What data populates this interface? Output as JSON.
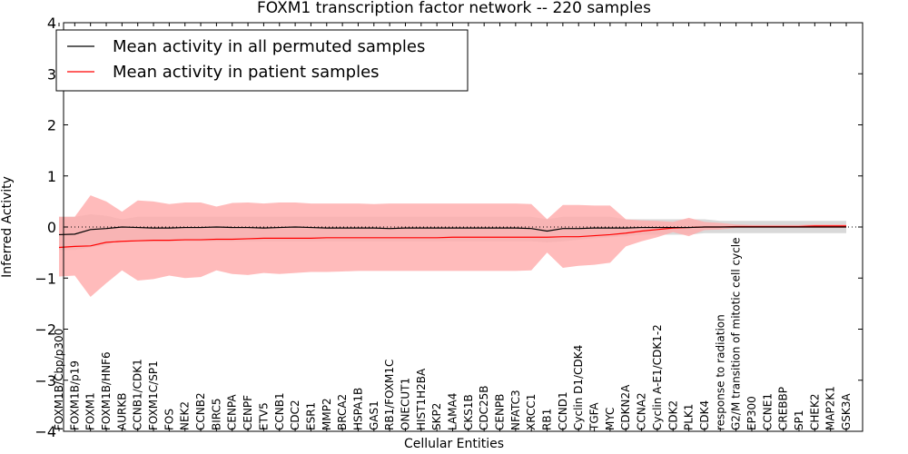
{
  "chart_data": {
    "type": "line",
    "title": "FOXM1 transcription factor network -- 220 samples",
    "xlabel": "Cellular Entities",
    "ylabel": "Inferred Activity",
    "ylim": [
      -4,
      4
    ],
    "yticks": [
      -4,
      -3,
      -2,
      -1,
      0,
      1,
      2,
      3,
      4
    ],
    "ytick_labels": [
      "−4",
      "−3",
      "−2",
      "−1",
      "0",
      "1",
      "2",
      "3",
      "4"
    ],
    "grid": false,
    "legend_position": "top-left",
    "categories": [
      "FOXM1B/Cbp/p300",
      "FOXM1B/p19",
      "FOXM1",
      "FOXM1B/HNF6",
      "AURKB",
      "CCNB1/CDK1",
      "FOXM1C/SP1",
      "FOS",
      "NEK2",
      "CCNB2",
      "BIRC5",
      "CENPA",
      "CENPF",
      "ETV5",
      "CCNB1",
      "CDC2",
      "ESR1",
      "MMP2",
      "BRCA2",
      "HSPA1B",
      "GAS1",
      "RB1/FOXM1C",
      "ONECUT1",
      "HIST1H2BA",
      "SKP2",
      "LAMA4",
      "CKS1B",
      "CDC25B",
      "CENPB",
      "NFATC3",
      "XRCC1",
      "RB1",
      "CCND1",
      "Cyclin D1/CDK4",
      "TGFA",
      "MYC",
      "CDKN2A",
      "CCNA2",
      "Cyclin A-E1/CDK1-2",
      "CDK2",
      "PLK1",
      "CDK4",
      "response to radiation",
      "G2/M transition of mitotic cell cycle",
      "EP300",
      "CCNE1",
      "CREBBP",
      "SP1",
      "CHEK2",
      "MAP2K1",
      "GSK3A"
    ],
    "series": [
      {
        "name": "Mean activity in all permuted samples",
        "color": "#000000",
        "values": [
          -0.15,
          -0.14,
          -0.05,
          -0.03,
          0.0,
          -0.01,
          -0.02,
          -0.02,
          -0.01,
          -0.01,
          0.0,
          -0.01,
          -0.01,
          -0.02,
          -0.01,
          0.0,
          -0.01,
          -0.02,
          -0.02,
          -0.02,
          -0.02,
          -0.03,
          -0.02,
          -0.02,
          -0.02,
          -0.02,
          -0.02,
          -0.02,
          -0.02,
          -0.02,
          -0.03,
          -0.08,
          -0.03,
          -0.03,
          -0.02,
          -0.02,
          -0.02,
          -0.01,
          -0.01,
          -0.01,
          -0.01,
          0.0,
          0.0,
          0.0,
          0.0,
          0.0,
          0.0,
          0.0,
          0.0,
          0.0,
          0.0
        ],
        "band_upper": [
          0.2,
          0.2,
          0.25,
          0.22,
          0.15,
          0.2,
          0.2,
          0.2,
          0.2,
          0.2,
          0.2,
          0.2,
          0.2,
          0.2,
          0.2,
          0.2,
          0.2,
          0.2,
          0.2,
          0.2,
          0.2,
          0.2,
          0.2,
          0.2,
          0.2,
          0.2,
          0.2,
          0.2,
          0.2,
          0.2,
          0.2,
          0.15,
          0.2,
          0.2,
          0.2,
          0.2,
          0.15,
          0.15,
          0.15,
          0.15,
          0.15,
          0.15,
          0.12,
          0.12,
          0.12,
          0.12,
          0.12,
          0.12,
          0.12,
          0.12,
          0.12
        ],
        "band_lower": [
          -0.45,
          -0.45,
          -0.4,
          -0.35,
          -0.25,
          -0.28,
          -0.28,
          -0.28,
          -0.28,
          -0.28,
          -0.28,
          -0.28,
          -0.28,
          -0.28,
          -0.28,
          -0.28,
          -0.28,
          -0.28,
          -0.28,
          -0.28,
          -0.28,
          -0.28,
          -0.28,
          -0.28,
          -0.28,
          -0.28,
          -0.28,
          -0.28,
          -0.28,
          -0.28,
          -0.28,
          -0.3,
          -0.28,
          -0.25,
          -0.22,
          -0.2,
          -0.18,
          -0.15,
          -0.15,
          -0.15,
          -0.15,
          -0.12,
          -0.12,
          -0.12,
          -0.12,
          -0.12,
          -0.12,
          -0.12,
          -0.12,
          -0.12,
          -0.12
        ]
      },
      {
        "name": "Mean activity in patient samples",
        "color": "#ff0000",
        "values": [
          -0.4,
          -0.38,
          -0.37,
          -0.3,
          -0.28,
          -0.27,
          -0.26,
          -0.26,
          -0.25,
          -0.25,
          -0.24,
          -0.24,
          -0.23,
          -0.22,
          -0.22,
          -0.22,
          -0.22,
          -0.21,
          -0.21,
          -0.21,
          -0.21,
          -0.21,
          -0.21,
          -0.21,
          -0.21,
          -0.2,
          -0.2,
          -0.2,
          -0.2,
          -0.2,
          -0.2,
          -0.2,
          -0.19,
          -0.19,
          -0.17,
          -0.15,
          -0.12,
          -0.08,
          -0.05,
          -0.02,
          -0.01,
          0.0,
          0.0,
          0.01,
          0.01,
          0.01,
          0.01,
          0.01,
          0.02,
          0.02,
          0.02
        ],
        "band_upper": [
          0.2,
          0.2,
          0.62,
          0.5,
          0.3,
          0.52,
          0.5,
          0.45,
          0.48,
          0.48,
          0.4,
          0.47,
          0.48,
          0.46,
          0.48,
          0.48,
          0.46,
          0.46,
          0.46,
          0.46,
          0.45,
          0.46,
          0.46,
          0.46,
          0.46,
          0.46,
          0.46,
          0.46,
          0.46,
          0.46,
          0.45,
          0.15,
          0.43,
          0.43,
          0.42,
          0.42,
          0.15,
          0.13,
          0.12,
          0.1,
          0.18,
          0.1,
          0.08,
          0.05,
          0.04,
          0.04,
          0.04,
          0.04,
          0.05,
          0.05,
          0.05
        ],
        "band_lower": [
          -0.97,
          -0.95,
          -1.37,
          -1.1,
          -0.85,
          -1.05,
          -1.02,
          -0.95,
          -1.0,
          -0.98,
          -0.85,
          -0.92,
          -0.94,
          -0.9,
          -0.92,
          -0.9,
          -0.88,
          -0.88,
          -0.87,
          -0.86,
          -0.86,
          -0.86,
          -0.86,
          -0.86,
          -0.86,
          -0.86,
          -0.86,
          -0.86,
          -0.86,
          -0.86,
          -0.85,
          -0.5,
          -0.8,
          -0.76,
          -0.74,
          -0.7,
          -0.38,
          -0.28,
          -0.2,
          -0.1,
          -0.18,
          -0.06,
          -0.05,
          -0.02,
          -0.02,
          -0.02,
          -0.02,
          -0.02,
          -0.02,
          -0.02,
          -0.02
        ]
      }
    ],
    "reference_line": {
      "y": 0,
      "style": "dotted"
    }
  },
  "colors": {
    "permuted_band": "#cccccc",
    "patient_band": "#ffaaaa",
    "overlap_band": "#e89a9a"
  }
}
